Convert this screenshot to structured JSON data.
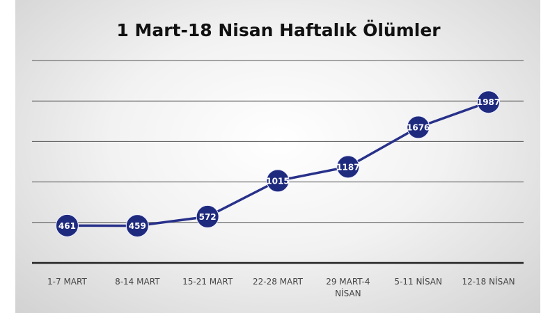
{
  "chart_data": {
    "type": "line",
    "title": "1 Mart-18 Nisan Haftalık Ölümler",
    "categories": [
      "1-7 MART",
      "8-14 MART",
      "15-21 MART",
      "22-28 MART",
      "29 MART-4 NİSAN",
      "5-11 NİSAN",
      "12-18 NİSAN"
    ],
    "values": [
      461,
      459,
      572,
      1015,
      1187,
      1676,
      1987
    ],
    "color": "#28318a",
    "ylim": [
      0,
      2500
    ],
    "yticks": [
      0,
      500,
      1000,
      1500,
      2000,
      2500
    ],
    "grid": true
  }
}
